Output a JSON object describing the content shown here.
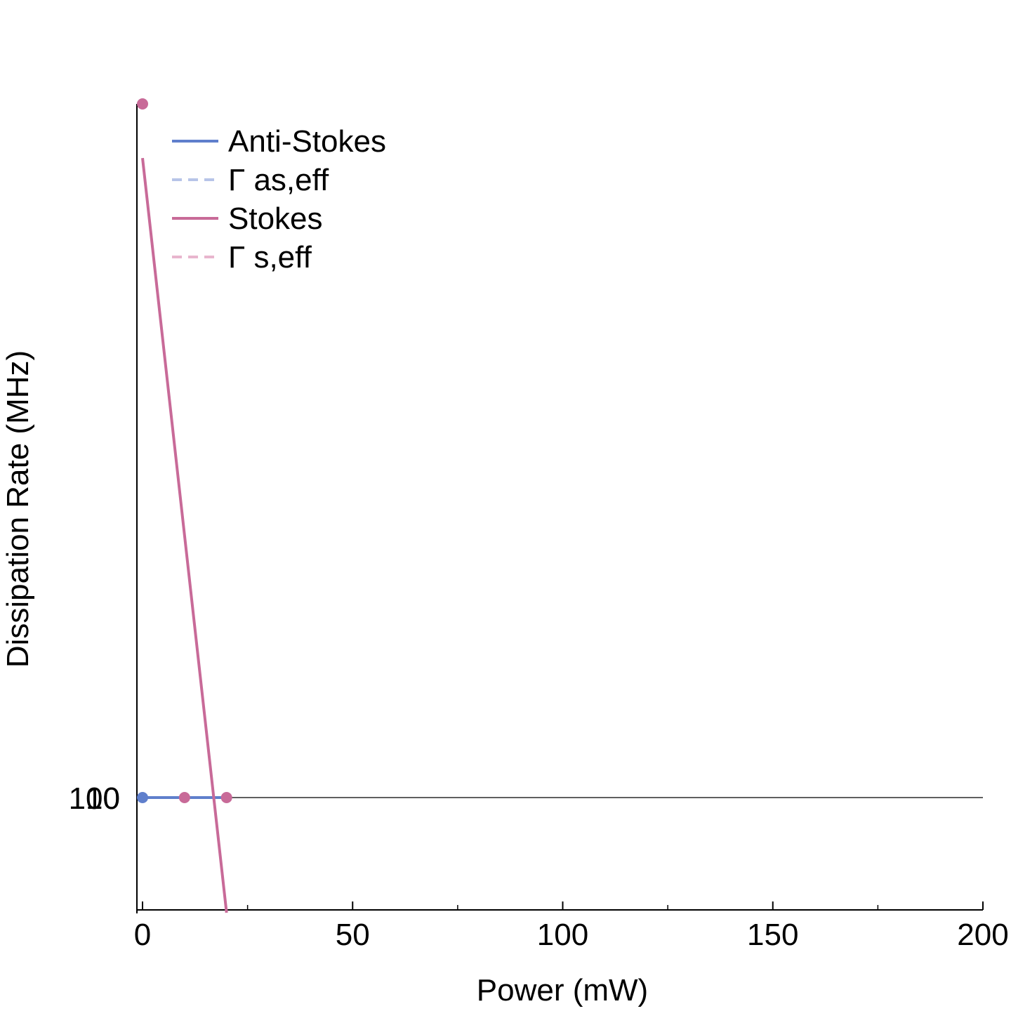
{
  "chart_data": {
    "type": "line",
    "title": "",
    "xlabel": "Power (mW)",
    "ylabel": "Dissipation Rate (MHz)",
    "xlim": [
      0,
      200
    ],
    "x_ticks": [
      0,
      50,
      100,
      150,
      200
    ],
    "x_tick_labels": [
      "0",
      "50",
      "100",
      "150",
      "200"
    ],
    "x_minor_ticks": [
      25,
      75,
      125,
      175
    ],
    "y_tick_labels": [
      "10",
      "100"
    ],
    "legend_position": "top-left",
    "grid": false,
    "colors": {
      "anti_stokes": "#5f7fcc",
      "anti_stokes_eff": "#b7c4e8",
      "stokes": "#c86a98",
      "stokes_eff": "#e8b6ce",
      "axis": "#000000"
    },
    "series": [
      {
        "name": "Anti-Stokes",
        "style": "solid",
        "x": [
          0,
          20
        ],
        "y": [
          100,
          100
        ],
        "points": {
          "x": [
            0
          ],
          "y": [
            100
          ]
        }
      },
      {
        "name": "Γ as,eff",
        "style": "dashed",
        "x": [],
        "y": []
      },
      {
        "name": "Stokes",
        "style": "solid",
        "x": [
          0,
          20
        ],
        "y": [
          3000,
          -25
        ],
        "points": {
          "x": [
            0,
            10,
            20
          ],
          "y": [
            4000,
            100,
            100
          ]
        }
      },
      {
        "name": "Γ s,eff",
        "style": "dashed",
        "x": [],
        "y": []
      }
    ]
  }
}
